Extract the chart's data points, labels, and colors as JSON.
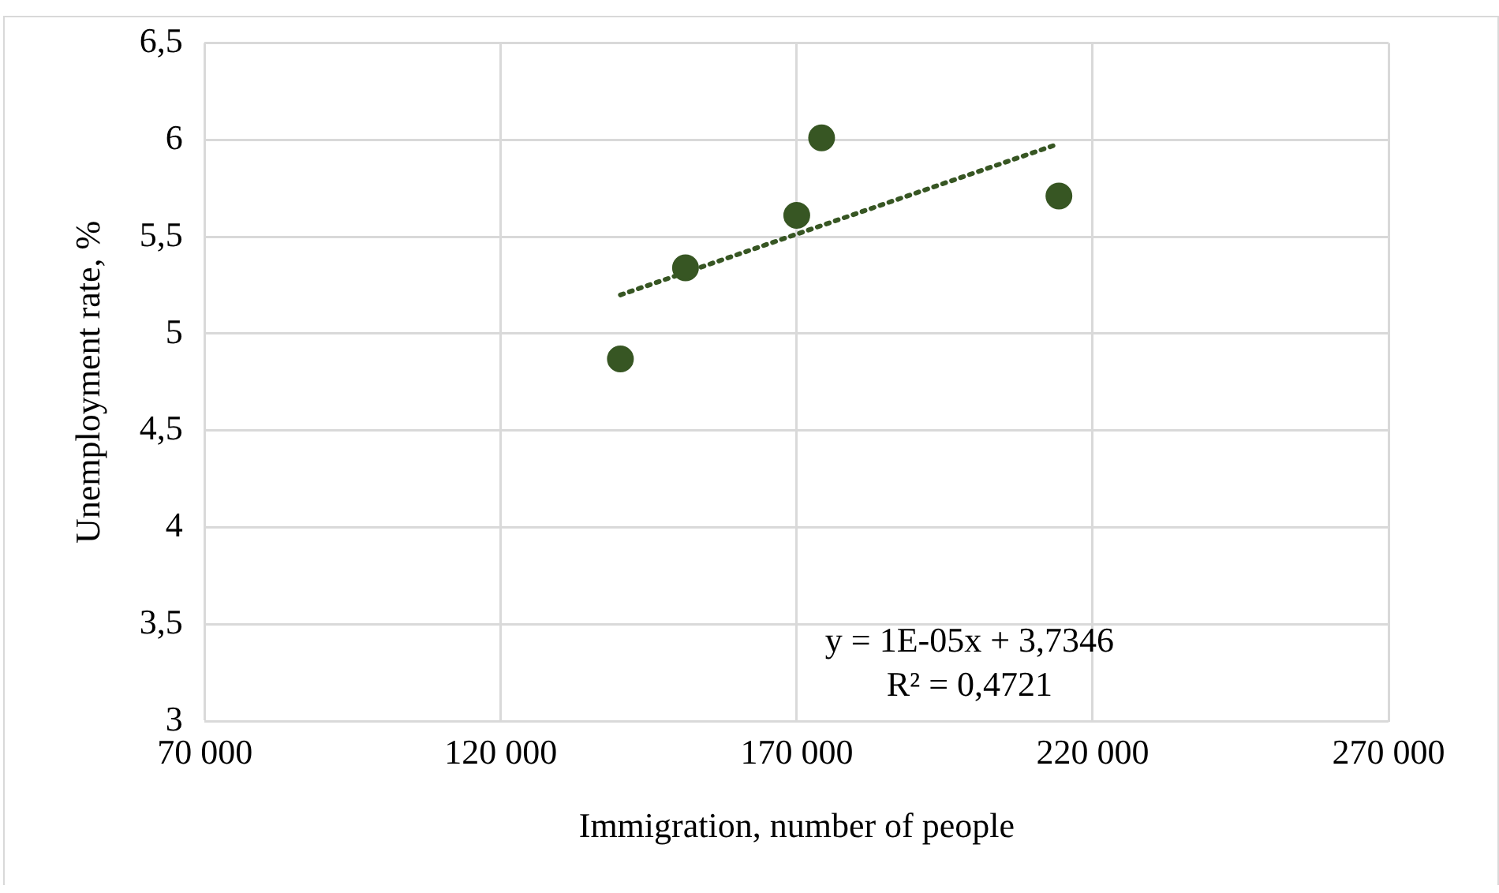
{
  "chart_data": {
    "type": "scatter",
    "xlabel": "Immigration, number of people",
    "ylabel": "Unemployment rate, %",
    "xlim": [
      70000,
      270000
    ],
    "xticks": [
      {
        "value": 70000,
        "label": "70 000"
      },
      {
        "value": 120000,
        "label": "120 000"
      },
      {
        "value": 170000,
        "label": "170 000"
      },
      {
        "value": 220000,
        "label": "220 000"
      },
      {
        "value": 270000,
        "label": "270 000"
      }
    ],
    "ylim": [
      3,
      6.5
    ],
    "yticks": [
      3,
      {
        "value": 3.5,
        "label": "3,5"
      },
      4,
      {
        "value": 4.5,
        "label": "4,5"
      },
      5,
      {
        "value": 5.5,
        "label": "5,5"
      },
      6,
      {
        "value": 6.5,
        "label": "6,5"
      }
    ],
    "grid": true,
    "legend": false,
    "marker": "circle",
    "series": [
      {
        "type": "scatter",
        "color": "#375623",
        "x": [
          140200,
          151200,
          170000,
          174200,
          214300
        ],
        "values": [
          4.87,
          5.34,
          5.61,
          6.01,
          5.71
        ]
      },
      {
        "type": "line",
        "color": "#375623",
        "line_style": "dotted",
        "marker": "none",
        "x": [
          140200,
          214300
        ],
        "values": [
          5.2,
          5.98
        ]
      }
    ],
    "annotations": [
      "y = 1E-05x + 3,7346",
      "R² = 0,4721"
    ]
  }
}
